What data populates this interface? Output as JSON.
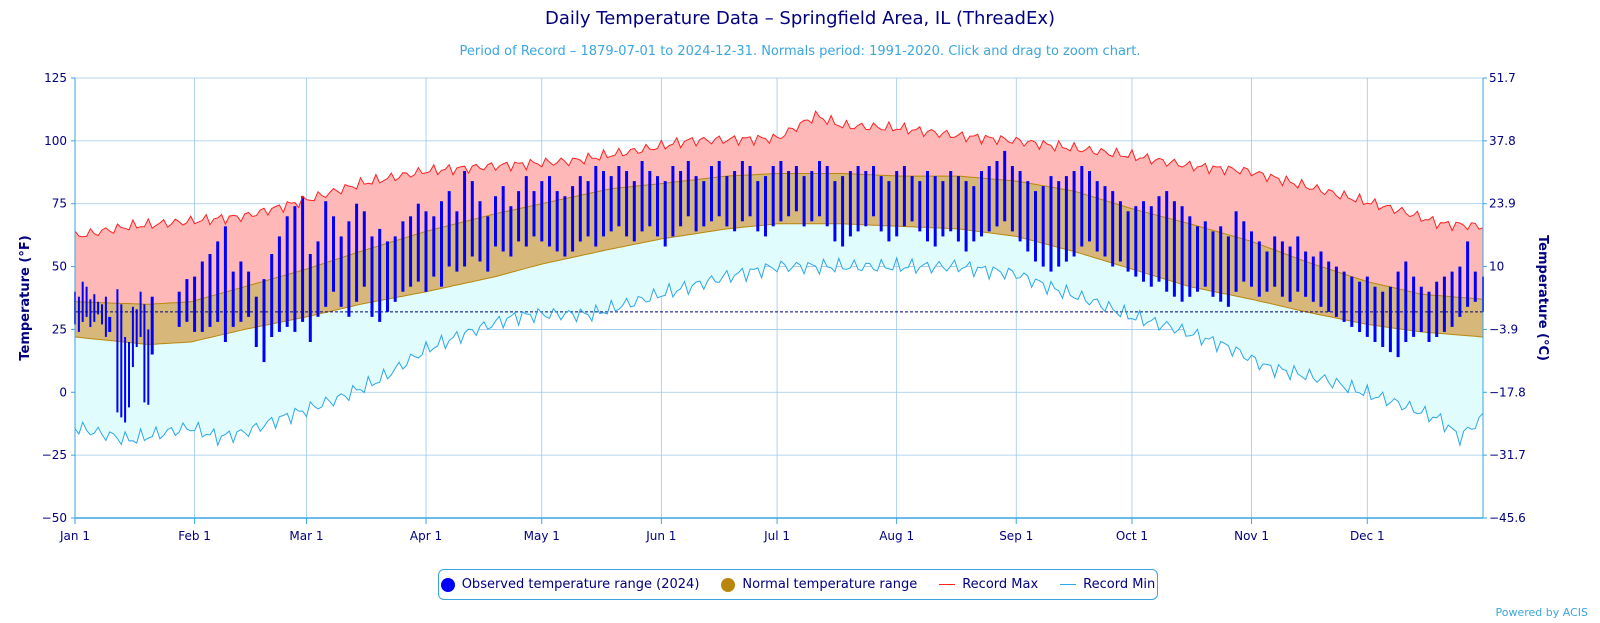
{
  "title": "Daily Temperature Data – Springfield Area, IL (ThreadEx)",
  "subtitle": "Period of Record – 1879-07-01 to 2024-12-31. Normals period: 1991-2020. Click and drag to zoom chart.",
  "credit": "Powered by ACIS",
  "colors": {
    "observed": "#0000ff",
    "normal_fill": "#d8b87a",
    "normal_line": "#b8860b",
    "record_max_line": "#ff2020",
    "record_max_fill": "#ffb8b8",
    "record_min_line": "#2aa8e8",
    "record_min_fill": "#e0fcfc",
    "grid": "#9cc8e8",
    "axis_text": "#000080",
    "freeze_line": "#000080"
  },
  "legend": {
    "items": [
      {
        "label": "Observed temperature range (2024)",
        "color": "#0000ff",
        "icon": "dot"
      },
      {
        "label": "Normal temperature range",
        "color": "#b8860b",
        "icon": "dot"
      },
      {
        "label": "Record Max",
        "color": "#ff2020",
        "icon": "line"
      },
      {
        "label": "Record Min",
        "color": "#2aa8e8",
        "icon": "line"
      }
    ]
  },
  "chart_data": {
    "type": "area",
    "title": "Daily Temperature Data – Springfield Area, IL (ThreadEx)",
    "ylabel_left": "Temperature (°F)",
    "ylabel_right": "Temperature (°C)",
    "ylim": [
      -50,
      125
    ],
    "yticks_left": [
      "125",
      "100",
      "75",
      "50",
      "25",
      "0",
      "−25",
      "−50"
    ],
    "yticks_right": [
      "51.7",
      "37.8",
      "23.9",
      "10",
      "−3.9",
      "−17.8",
      "−31.7",
      "−45.6"
    ],
    "x_ticks": [
      {
        "day": 1,
        "label": "Jan 1"
      },
      {
        "day": 32,
        "label": "Feb 1"
      },
      {
        "day": 61,
        "label": "Mar 1"
      },
      {
        "day": 92,
        "label": "Apr 1"
      },
      {
        "day": 122,
        "label": "May 1"
      },
      {
        "day": 153,
        "label": "Jun 1"
      },
      {
        "day": 183,
        "label": "Jul 1"
      },
      {
        "day": 214,
        "label": "Aug 1"
      },
      {
        "day": 245,
        "label": "Sep 1"
      },
      {
        "day": 275,
        "label": "Oct 1"
      },
      {
        "day": 306,
        "label": "Nov 1"
      },
      {
        "day": 336,
        "label": "Dec 1"
      }
    ],
    "freezing_line_f": 32,
    "grid": true,
    "legend_position": "bottom",
    "record_max_anchors": [
      [
        1,
        62
      ],
      [
        15,
        66
      ],
      [
        31,
        68
      ],
      [
        45,
        70
      ],
      [
        55,
        74
      ],
      [
        60,
        76
      ],
      [
        75,
        83
      ],
      [
        92,
        88
      ],
      [
        110,
        90
      ],
      [
        130,
        92
      ],
      [
        150,
        97
      ],
      [
        160,
        100
      ],
      [
        183,
        101
      ],
      [
        193,
        110
      ],
      [
        200,
        106
      ],
      [
        215,
        105
      ],
      [
        230,
        102
      ],
      [
        245,
        100
      ],
      [
        260,
        97
      ],
      [
        275,
        94
      ],
      [
        290,
        90
      ],
      [
        305,
        88
      ],
      [
        320,
        82
      ],
      [
        335,
        76
      ],
      [
        345,
        72
      ],
      [
        355,
        67
      ],
      [
        366,
        66
      ]
    ],
    "record_min_anchors": [
      [
        1,
        -14
      ],
      [
        15,
        -19
      ],
      [
        31,
        -14
      ],
      [
        38,
        -18
      ],
      [
        45,
        -16
      ],
      [
        55,
        -10
      ],
      [
        61,
        -7
      ],
      [
        70,
        -2
      ],
      [
        80,
        5
      ],
      [
        92,
        17
      ],
      [
        105,
        25
      ],
      [
        115,
        30
      ],
      [
        122,
        31
      ],
      [
        135,
        31
      ],
      [
        153,
        39
      ],
      [
        170,
        46
      ],
      [
        183,
        50
      ],
      [
        200,
        50
      ],
      [
        215,
        50
      ],
      [
        230,
        50
      ],
      [
        245,
        47
      ],
      [
        255,
        41
      ],
      [
        265,
        36
      ],
      [
        275,
        30
      ],
      [
        285,
        26
      ],
      [
        300,
        18
      ],
      [
        310,
        10
      ],
      [
        325,
        5
      ],
      [
        335,
        0
      ],
      [
        345,
        -5
      ],
      [
        355,
        -11
      ],
      [
        360,
        -18
      ],
      [
        366,
        -10
      ]
    ],
    "normal_high_anchors": [
      [
        1,
        36
      ],
      [
        20,
        35
      ],
      [
        31,
        36
      ],
      [
        45,
        42
      ],
      [
        61,
        49
      ],
      [
        75,
        56
      ],
      [
        92,
        64
      ],
      [
        110,
        71
      ],
      [
        122,
        75
      ],
      [
        140,
        81
      ],
      [
        153,
        83
      ],
      [
        170,
        86
      ],
      [
        183,
        87
      ],
      [
        200,
        87
      ],
      [
        215,
        86
      ],
      [
        230,
        86
      ],
      [
        245,
        84
      ],
      [
        260,
        80
      ],
      [
        275,
        73
      ],
      [
        290,
        67
      ],
      [
        306,
        60
      ],
      [
        320,
        52
      ],
      [
        336,
        44
      ],
      [
        350,
        39
      ],
      [
        366,
        37
      ]
    ],
    "normal_low_anchors": [
      [
        1,
        22
      ],
      [
        20,
        19
      ],
      [
        31,
        20
      ],
      [
        45,
        25
      ],
      [
        61,
        30
      ],
      [
        75,
        35
      ],
      [
        92,
        40
      ],
      [
        110,
        46
      ],
      [
        122,
        51
      ],
      [
        140,
        57
      ],
      [
        153,
        61
      ],
      [
        170,
        65
      ],
      [
        183,
        67
      ],
      [
        200,
        67
      ],
      [
        215,
        66
      ],
      [
        230,
        65
      ],
      [
        245,
        62
      ],
      [
        260,
        56
      ],
      [
        275,
        49
      ],
      [
        290,
        42
      ],
      [
        306,
        37
      ],
      [
        320,
        32
      ],
      [
        336,
        27
      ],
      [
        350,
        24
      ],
      [
        366,
        22
      ]
    ],
    "observed_2024": [
      [
        1,
        27,
        40
      ],
      [
        2,
        24,
        38
      ],
      [
        3,
        28,
        44
      ],
      [
        4,
        30,
        42
      ],
      [
        5,
        26,
        37
      ],
      [
        6,
        28,
        39
      ],
      [
        7,
        31,
        36
      ],
      [
        8,
        27,
        35
      ],
      [
        9,
        22,
        38
      ],
      [
        10,
        24,
        30
      ],
      [
        12,
        -8,
        41
      ],
      [
        13,
        -10,
        35
      ],
      [
        14,
        -12,
        22
      ],
      [
        15,
        -6,
        20
      ],
      [
        16,
        10,
        34
      ],
      [
        17,
        18,
        33
      ],
      [
        18,
        22,
        40
      ],
      [
        19,
        -4,
        35
      ],
      [
        20,
        -5,
        25
      ],
      [
        21,
        15,
        38
      ],
      [
        28,
        26,
        40
      ],
      [
        30,
        28,
        45
      ],
      [
        32,
        24,
        46
      ],
      [
        34,
        24,
        52
      ],
      [
        36,
        26,
        55
      ],
      [
        38,
        28,
        60
      ],
      [
        40,
        20,
        66
      ],
      [
        42,
        26,
        48
      ],
      [
        44,
        28,
        52
      ],
      [
        46,
        30,
        48
      ],
      [
        48,
        18,
        38
      ],
      [
        50,
        12,
        45
      ],
      [
        52,
        22,
        55
      ],
      [
        54,
        24,
        62
      ],
      [
        56,
        26,
        70
      ],
      [
        58,
        24,
        74
      ],
      [
        60,
        28,
        78
      ],
      [
        62,
        20,
        55
      ],
      [
        64,
        30,
        60
      ],
      [
        66,
        34,
        76
      ],
      [
        68,
        40,
        70
      ],
      [
        70,
        34,
        62
      ],
      [
        72,
        30,
        68
      ],
      [
        74,
        36,
        75
      ],
      [
        76,
        42,
        72
      ],
      [
        78,
        30,
        62
      ],
      [
        80,
        28,
        65
      ],
      [
        82,
        32,
        60
      ],
      [
        84,
        36,
        62
      ],
      [
        86,
        40,
        68
      ],
      [
        88,
        42,
        70
      ],
      [
        90,
        44,
        75
      ],
      [
        92,
        40,
        72
      ],
      [
        94,
        46,
        70
      ],
      [
        96,
        42,
        76
      ],
      [
        98,
        50,
        80
      ],
      [
        100,
        48,
        72
      ],
      [
        102,
        50,
        88
      ],
      [
        104,
        54,
        84
      ],
      [
        106,
        52,
        76
      ],
      [
        108,
        48,
        70
      ],
      [
        110,
        58,
        78
      ],
      [
        112,
        56,
        82
      ],
      [
        114,
        54,
        74
      ],
      [
        116,
        60,
        80
      ],
      [
        118,
        58,
        86
      ],
      [
        120,
        62,
        80
      ],
      [
        122,
        60,
        84
      ],
      [
        124,
        58,
        86
      ],
      [
        126,
        56,
        80
      ],
      [
        128,
        54,
        78
      ],
      [
        130,
        56,
        82
      ],
      [
        132,
        60,
        86
      ],
      [
        134,
        62,
        84
      ],
      [
        136,
        58,
        90
      ],
      [
        138,
        62,
        88
      ],
      [
        140,
        64,
        86
      ],
      [
        142,
        66,
        90
      ],
      [
        144,
        62,
        88
      ],
      [
        146,
        60,
        84
      ],
      [
        148,
        64,
        92
      ],
      [
        150,
        66,
        88
      ],
      [
        152,
        62,
        86
      ],
      [
        154,
        58,
        84
      ],
      [
        156,
        62,
        90
      ],
      [
        158,
        66,
        88
      ],
      [
        160,
        70,
        92
      ],
      [
        162,
        64,
        86
      ],
      [
        164,
        66,
        84
      ],
      [
        166,
        68,
        90
      ],
      [
        168,
        70,
        92
      ],
      [
        170,
        66,
        86
      ],
      [
        172,
        64,
        88
      ],
      [
        174,
        68,
        92
      ],
      [
        176,
        70,
        90
      ],
      [
        178,
        64,
        84
      ],
      [
        180,
        62,
        86
      ],
      [
        182,
        66,
        90
      ],
      [
        184,
        68,
        92
      ],
      [
        186,
        70,
        88
      ],
      [
        188,
        72,
        90
      ],
      [
        190,
        66,
        86
      ],
      [
        192,
        68,
        88
      ],
      [
        194,
        70,
        92
      ],
      [
        196,
        66,
        90
      ],
      [
        198,
        60,
        84
      ],
      [
        200,
        58,
        86
      ],
      [
        202,
        62,
        88
      ],
      [
        204,
        64,
        90
      ],
      [
        206,
        66,
        88
      ],
      [
        208,
        70,
        90
      ],
      [
        210,
        64,
        86
      ],
      [
        212,
        60,
        84
      ],
      [
        214,
        62,
        88
      ],
      [
        216,
        66,
        90
      ],
      [
        218,
        68,
        86
      ],
      [
        220,
        64,
        84
      ],
      [
        222,
        60,
        88
      ],
      [
        224,
        58,
        86
      ],
      [
        226,
        62,
        84
      ],
      [
        228,
        64,
        88
      ],
      [
        230,
        60,
        86
      ],
      [
        232,
        56,
        84
      ],
      [
        234,
        60,
        82
      ],
      [
        236,
        62,
        88
      ],
      [
        238,
        64,
        90
      ],
      [
        240,
        66,
        92
      ],
      [
        242,
        68,
        96
      ],
      [
        244,
        64,
        90
      ],
      [
        246,
        60,
        88
      ],
      [
        248,
        56,
        84
      ],
      [
        250,
        52,
        80
      ],
      [
        252,
        50,
        82
      ],
      [
        254,
        48,
        86
      ],
      [
        256,
        50,
        84
      ],
      [
        258,
        52,
        86
      ],
      [
        260,
        54,
        88
      ],
      [
        262,
        58,
        90
      ],
      [
        264,
        60,
        88
      ],
      [
        266,
        56,
        84
      ],
      [
        268,
        54,
        82
      ],
      [
        270,
        50,
        80
      ],
      [
        272,
        52,
        76
      ],
      [
        274,
        48,
        72
      ],
      [
        276,
        46,
        74
      ],
      [
        278,
        44,
        76
      ],
      [
        280,
        42,
        74
      ],
      [
        282,
        44,
        78
      ],
      [
        284,
        40,
        80
      ],
      [
        286,
        38,
        76
      ],
      [
        288,
        36,
        74
      ],
      [
        290,
        38,
        70
      ],
      [
        292,
        40,
        66
      ],
      [
        294,
        42,
        68
      ],
      [
        296,
        38,
        64
      ],
      [
        298,
        36,
        66
      ],
      [
        300,
        34,
        62
      ],
      [
        302,
        40,
        72
      ],
      [
        304,
        44,
        68
      ],
      [
        306,
        42,
        64
      ],
      [
        308,
        38,
        60
      ],
      [
        310,
        40,
        56
      ],
      [
        312,
        42,
        62
      ],
      [
        314,
        38,
        60
      ],
      [
        316,
        36,
        58
      ],
      [
        318,
        40,
        62
      ],
      [
        320,
        38,
        56
      ],
      [
        322,
        36,
        54
      ],
      [
        324,
        34,
        56
      ],
      [
        326,
        32,
        52
      ],
      [
        328,
        30,
        50
      ],
      [
        330,
        28,
        48
      ],
      [
        332,
        26,
        46
      ],
      [
        334,
        24,
        44
      ],
      [
        336,
        22,
        46
      ],
      [
        338,
        20,
        42
      ],
      [
        340,
        18,
        40
      ],
      [
        342,
        16,
        42
      ],
      [
        344,
        14,
        48
      ],
      [
        346,
        20,
        52
      ],
      [
        348,
        22,
        46
      ],
      [
        350,
        24,
        42
      ],
      [
        352,
        20,
        40
      ],
      [
        354,
        22,
        44
      ],
      [
        356,
        24,
        46
      ],
      [
        358,
        26,
        48
      ],
      [
        360,
        30,
        50
      ],
      [
        362,
        34,
        60
      ],
      [
        364,
        36,
        48
      ],
      [
        366,
        32,
        46
      ]
    ]
  }
}
